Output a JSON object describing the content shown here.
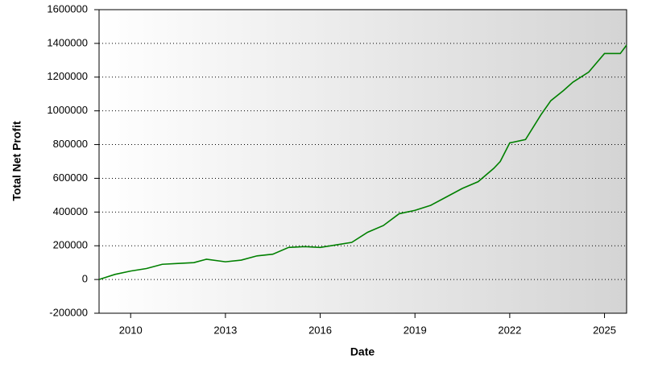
{
  "chart_data": {
    "type": "line",
    "xlabel": "Date",
    "ylabel": "Total Net Profit",
    "x": [
      2009.0,
      2009.5,
      2010.0,
      2010.5,
      2011.0,
      2011.5,
      2012.0,
      2012.4,
      2013.0,
      2013.5,
      2014.0,
      2014.5,
      2015.0,
      2015.5,
      2016.0,
      2016.5,
      2017.0,
      2017.5,
      2018.0,
      2018.5,
      2019.0,
      2019.5,
      2020.0,
      2020.5,
      2021.0,
      2021.5,
      2021.7,
      2022.0,
      2022.5,
      2023.0,
      2023.3,
      2023.7,
      2024.0,
      2024.5,
      2025.0,
      2025.5,
      2025.7
    ],
    "series": [
      {
        "name": "Total Net Profit",
        "color": "#008000",
        "values": [
          0,
          30000,
          50000,
          65000,
          90000,
          95000,
          100000,
          120000,
          105000,
          115000,
          140000,
          150000,
          190000,
          195000,
          190000,
          205000,
          220000,
          280000,
          320000,
          390000,
          410000,
          440000,
          490000,
          540000,
          580000,
          660000,
          700000,
          810000,
          830000,
          980000,
          1060000,
          1120000,
          1170000,
          1230000,
          1340000,
          1340000,
          1390000
        ]
      }
    ],
    "xlim": [
      2009.0,
      2025.7
    ],
    "xticks": [
      2010,
      2013,
      2016,
      2019,
      2022,
      2025
    ],
    "ylim": [
      -200000,
      1600000
    ],
    "yticks": [
      -200000,
      0,
      200000,
      400000,
      600000,
      800000,
      1000000,
      1200000,
      1400000,
      1600000
    ],
    "grid": true
  }
}
